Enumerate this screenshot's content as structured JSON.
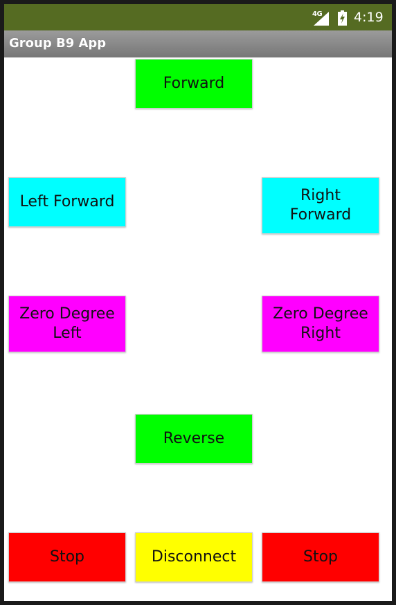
{
  "status_bar": {
    "network": "4G",
    "signal_icon": "signal-icon",
    "battery_icon": "battery-charging-icon",
    "time": "4:19",
    "background": "#556b22"
  },
  "app": {
    "title": "Group B9 App"
  },
  "buttons": {
    "forward": {
      "label": "Forward",
      "color": "#00ff00"
    },
    "left_forward": {
      "label": "Left Forward",
      "color": "#00ffff"
    },
    "right_forward": {
      "label": "Right\nForward",
      "color": "#00ffff"
    },
    "zero_degree_left": {
      "label": "Zero Degree\nLeft",
      "color": "#ff00ff"
    },
    "zero_degree_right": {
      "label": "Zero Degree\nRight",
      "color": "#ff00ff"
    },
    "reverse": {
      "label": "Reverse",
      "color": "#00ff00"
    },
    "stop_left": {
      "label": "Stop",
      "color": "#ff0000"
    },
    "disconnect": {
      "label": "Disconnect",
      "color": "#ffff00"
    },
    "stop_right": {
      "label": "Stop",
      "color": "#ff0000"
    }
  }
}
